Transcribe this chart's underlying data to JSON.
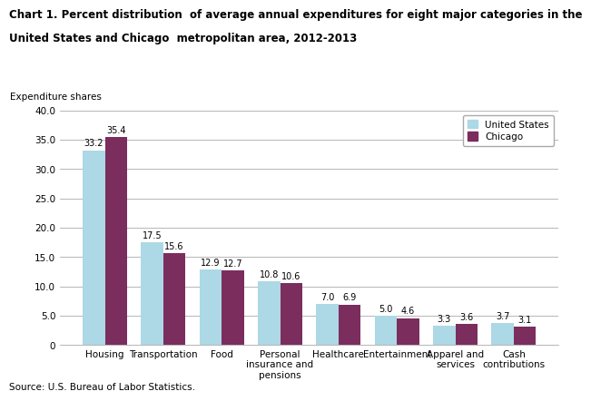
{
  "title_line1": "Chart 1. Percent distribution  of average annual expenditures for eight major categories in the",
  "title_line2": "United States and Chicago  metropolitan area, 2012-2013",
  "ylabel": "Expenditure shares",
  "ylim": [
    0,
    40
  ],
  "yticks": [
    0.0,
    5.0,
    10.0,
    15.0,
    20.0,
    25.0,
    30.0,
    35.0,
    40.0
  ],
  "ytick_labels": [
    "0",
    "5.0",
    "10.0",
    "15.0",
    "20.0",
    "25.0",
    "30.0",
    "35.0",
    "40.0"
  ],
  "categories": [
    "Housing",
    "Transportation",
    "Food",
    "Personal\ninsurance and\npensions",
    "Healthcare",
    "Entertainment",
    "Apparel and\nservices",
    "Cash\ncontributions"
  ],
  "us_values": [
    33.2,
    17.5,
    12.9,
    10.8,
    7.0,
    5.0,
    3.3,
    3.7
  ],
  "chicago_values": [
    35.4,
    15.6,
    12.7,
    10.6,
    6.9,
    4.6,
    3.6,
    3.1
  ],
  "us_color": "#ADD8E6",
  "chicago_color": "#7B2D5E",
  "us_label": "United States",
  "chicago_label": "Chicago",
  "source": "Source: U.S. Bureau of Labor Statistics.",
  "bar_width": 0.38
}
